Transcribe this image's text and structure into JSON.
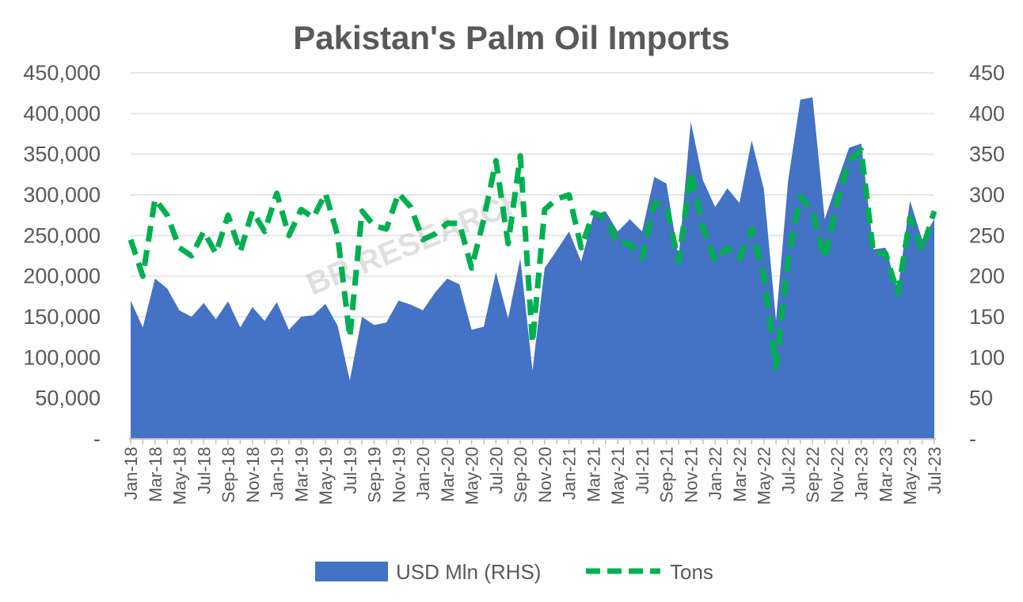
{
  "chart_data": {
    "type": "area",
    "title": "Pakistan's Palm Oil Imports",
    "watermark": "BR RESEARCH",
    "categories": [
      "Jan-18",
      "Feb-18",
      "Mar-18",
      "Apr-18",
      "May-18",
      "Jun-18",
      "Jul-18",
      "Aug-18",
      "Sep-18",
      "Oct-18",
      "Nov-18",
      "Dec-18",
      "Jan-19",
      "Feb-19",
      "Mar-19",
      "Apr-19",
      "May-19",
      "Jun-19",
      "Jul-19",
      "Aug-19",
      "Sep-19",
      "Oct-19",
      "Nov-19",
      "Dec-19",
      "Jan-20",
      "Feb-20",
      "Mar-20",
      "Apr-20",
      "May-20",
      "Jun-20",
      "Jul-20",
      "Aug-20",
      "Sep-20",
      "Oct-20",
      "Nov-20",
      "Dec-20",
      "Jan-21",
      "Feb-21",
      "Mar-21",
      "Apr-21",
      "May-21",
      "Jun-21",
      "Jul-21",
      "Aug-21",
      "Sep-21",
      "Oct-21",
      "Nov-21",
      "Dec-21",
      "Jan-22",
      "Feb-22",
      "Mar-22",
      "Apr-22",
      "May-22",
      "Jun-22",
      "Jul-22",
      "Aug-22",
      "Sep-22",
      "Oct-22",
      "Nov-22",
      "Dec-22",
      "Jan-23",
      "Feb-23",
      "Mar-23",
      "Apr-23",
      "May-23",
      "Jun-23",
      "Jul-23"
    ],
    "x_tick_labels": [
      "Jan-18",
      "Mar-18",
      "May-18",
      "Jul-18",
      "Sep-18",
      "Nov-18",
      "Jan-19",
      "Mar-19",
      "May-19",
      "Jul-19",
      "Sep-19",
      "Nov-19",
      "Jan-20",
      "Mar-20",
      "May-20",
      "Jul-20",
      "Sep-20",
      "Nov-20",
      "Jan-21",
      "Mar-21",
      "May-21",
      "Jul-21",
      "Sep-21",
      "Nov-21",
      "Jan-22",
      "Mar-22",
      "May-22",
      "Jul-22",
      "Sep-22",
      "Nov-22",
      "Jan-23",
      "Mar-23",
      "May-23",
      "Jul-23"
    ],
    "y_left": {
      "lim": [
        0,
        450000
      ],
      "ticks": [
        "-",
        "50,000",
        "100,000",
        "150,000",
        "200,000",
        "250,000",
        "300,000",
        "350,000",
        "400,000",
        "450,000"
      ]
    },
    "y_right": {
      "lim": [
        0,
        450
      ],
      "ticks": [
        "-",
        "50",
        "100",
        "150",
        "200",
        "250",
        "300",
        "350",
        "400",
        "450"
      ]
    },
    "grid": true,
    "legend_position": "bottom",
    "series": [
      {
        "name": "USD Mln (RHS)",
        "kind": "area",
        "axis": "right",
        "color": "#4472c4",
        "values": [
          170,
          137,
          197,
          185,
          158,
          150,
          167,
          147,
          169,
          137,
          162,
          145,
          168,
          134,
          150,
          152,
          166,
          139,
          72,
          150,
          140,
          143,
          170,
          165,
          158,
          180,
          197,
          190,
          134,
          138,
          205,
          148,
          222,
          84,
          210,
          232,
          255,
          218,
          275,
          280,
          255,
          270,
          255,
          322,
          314,
          222,
          390,
          318,
          285,
          308,
          290,
          367,
          307,
          145,
          318,
          417,
          420,
          270,
          315,
          358,
          363,
          233,
          235,
          183,
          293,
          245,
          270
        ]
      },
      {
        "name": "Tons",
        "kind": "line",
        "axis": "left",
        "style": "dashed",
        "color": "#00b050",
        "values": [
          245000,
          200000,
          295000,
          275000,
          235000,
          225000,
          255000,
          228000,
          275000,
          230000,
          280000,
          255000,
          302000,
          250000,
          282000,
          272000,
          302000,
          250000,
          125000,
          280000,
          262000,
          258000,
          302000,
          285000,
          245000,
          252000,
          265000,
          265000,
          210000,
          270000,
          342000,
          240000,
          348000,
          118000,
          282000,
          295000,
          300000,
          235000,
          278000,
          272000,
          240000,
          240000,
          222000,
          290000,
          285000,
          218000,
          328000,
          260000,
          218000,
          235000,
          222000,
          258000,
          200000,
          88000,
          222000,
          298000,
          280000,
          222000,
          290000,
          342000,
          355000,
          228000,
          228000,
          178000,
          272000,
          232000,
          280000
        ]
      }
    ]
  }
}
